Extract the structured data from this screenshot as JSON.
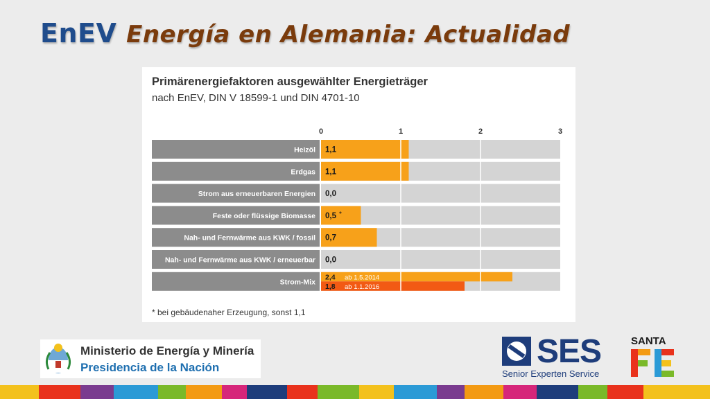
{
  "slide": {
    "title_part1": "EnEV",
    "title_part2": "Energía en Alemania: Actualidad"
  },
  "chart_data": {
    "type": "bar",
    "orientation": "horizontal",
    "title": "Primärenergiefaktoren ausgewählter Energieträger",
    "subtitle": "nach EnEV, DIN V 18599-1 und DIN 4701-10",
    "xlim": [
      0,
      3
    ],
    "x_ticks": [
      "0",
      "1",
      "2",
      "3"
    ],
    "categories": [
      "Heizöl",
      "Erdgas",
      "Strom aus erneuerbaren Energien",
      "Feste oder flüssige Biomasse",
      "Nah- und Fernwärme aus KWK / fossil",
      "Nah- und Fernwärme aus KWK / erneuerbar",
      "Strom-Mix"
    ],
    "bars": [
      {
        "category": "Heizöl",
        "values": [
          {
            "value": 1.1,
            "label": "1,1",
            "color": "#f7a11a"
          }
        ]
      },
      {
        "category": "Erdgas",
        "values": [
          {
            "value": 1.1,
            "label": "1,1",
            "color": "#f7a11a"
          }
        ]
      },
      {
        "category": "Strom aus erneuerbaren Energien",
        "values": [
          {
            "value": 0.0,
            "label": "0,0",
            "color": "#f7a11a"
          }
        ]
      },
      {
        "category": "Feste oder flüssige Biomasse",
        "values": [
          {
            "value": 0.5,
            "label": "0,5",
            "note": "*",
            "color": "#f7a11a"
          }
        ]
      },
      {
        "category": "Nah- und Fernwärme aus KWK / fossil",
        "values": [
          {
            "value": 0.7,
            "label": "0,7",
            "color": "#f7a11a"
          }
        ]
      },
      {
        "category": "Nah- und Fernwärme aus KWK / erneuerbar",
        "values": [
          {
            "value": 0.0,
            "label": "0,0",
            "color": "#f7a11a"
          }
        ]
      },
      {
        "category": "Strom-Mix",
        "values": [
          {
            "value": 2.4,
            "label": "2,4",
            "note": "ab 1.5.2014",
            "color": "#f7a11a"
          },
          {
            "value": 1.8,
            "label": "1,8",
            "note": "ab 1.1.2016",
            "color": "#f25a14"
          }
        ]
      }
    ],
    "footnote": "* bei gebäudenaher Erzeugung, sonst 1,1",
    "grid": true
  },
  "colors": {
    "category_cell": "#8c8c8c",
    "track": "#d4d4d4",
    "bar_primary": "#f7a11a",
    "bar_secondary": "#f25a14",
    "title_enev": "#1f4c8c",
    "title_rest": "#7a3b0c"
  },
  "footer": {
    "ministry_line1": "Ministerio de Energía y Minería",
    "ministry_line2": "Presidencia de la Nación",
    "ses_logo": "SES",
    "ses_subtitle": "Senior Experten Service",
    "santafe_top": "SANTA",
    "santafe_icon": "santa-fe-logo-icon",
    "ses_icon": "ses-logo-icon",
    "emblem_icon": "argentina-coat-of-arms-icon"
  }
}
